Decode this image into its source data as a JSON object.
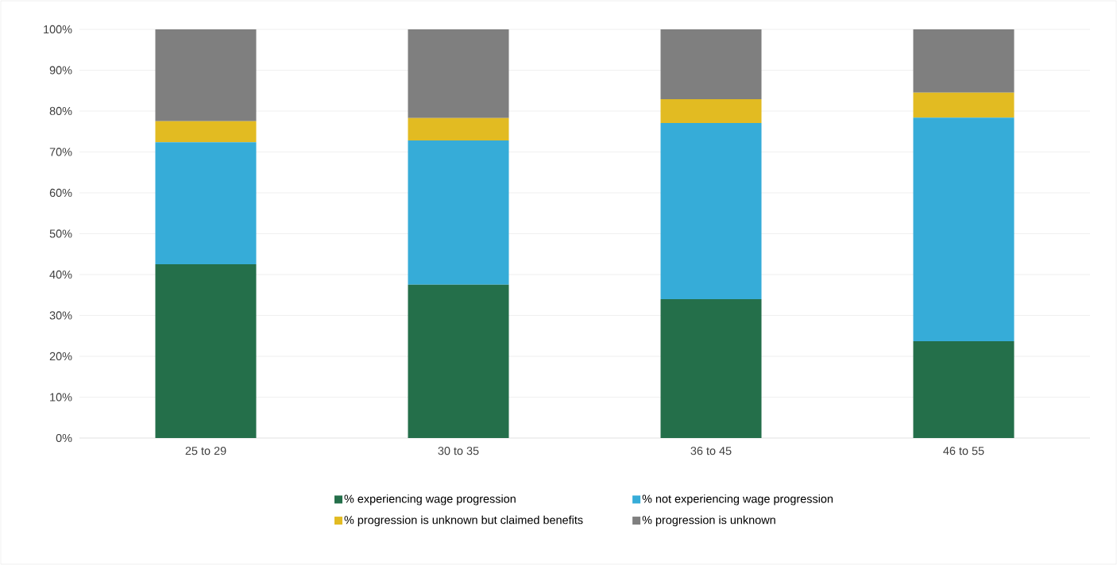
{
  "chart_data": {
    "type": "bar",
    "stacked": true,
    "categories": [
      "25 to 29",
      "30 to 35",
      "36 to 45",
      "46 to 55"
    ],
    "series": [
      {
        "name": "% experiencing wage progression",
        "color": "#246f4a",
        "values": [
          42.5,
          37.5,
          34.0,
          23.7
        ]
      },
      {
        "name": "% not experiencing wage progression",
        "color": "#36acd8",
        "values": [
          29.9,
          35.3,
          43.1,
          54.7
        ]
      },
      {
        "name": "% progression is unknown but claimed benefits",
        "color": "#e2bb22",
        "values": [
          5.1,
          5.5,
          5.8,
          6.1
        ]
      },
      {
        "name": "% progression is unknown",
        "color": "#7f7f7f",
        "values": [
          22.5,
          21.7,
          17.1,
          15.5
        ]
      }
    ],
    "ylim": [
      0,
      100
    ],
    "yticks": [
      {
        "value": 0,
        "label": "0%"
      },
      {
        "value": 10,
        "label": "10%"
      },
      {
        "value": 20,
        "label": "20%"
      },
      {
        "value": 30,
        "label": "30%"
      },
      {
        "value": 40,
        "label": "40%"
      },
      {
        "value": 50,
        "label": "50%"
      },
      {
        "value": 60,
        "label": "60%"
      },
      {
        "value": 70,
        "label": "70%"
      },
      {
        "value": 80,
        "label": "80%"
      },
      {
        "value": 90,
        "label": "90%"
      },
      {
        "value": 100,
        "label": "100%"
      }
    ],
    "grid": "y",
    "legend": "bottom"
  }
}
